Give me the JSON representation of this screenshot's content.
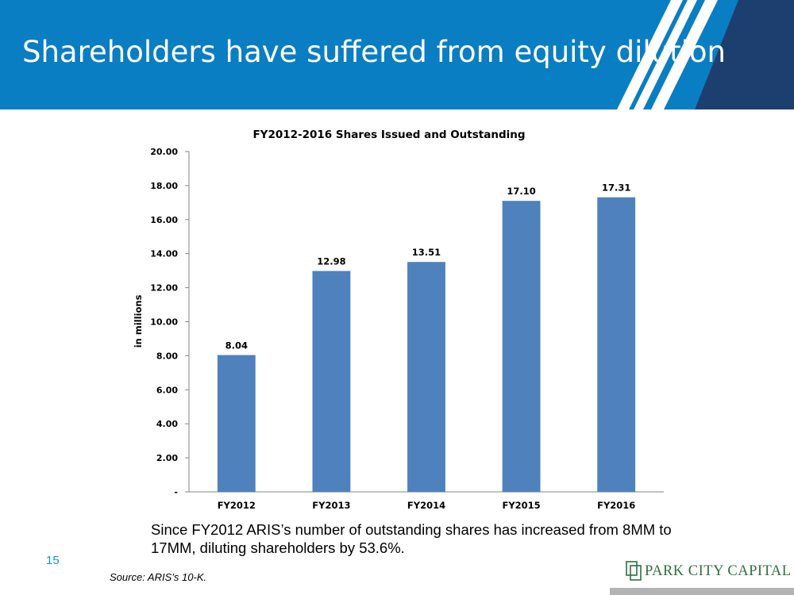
{
  "slide": {
    "title": "Shareholders have suffered from equity dilution",
    "page_number": "15",
    "caption": "Since FY2012 ARIS’s number of outstanding shares has increased from 8MM to 17MM, diluting shareholders by 53.6%.",
    "source": "Source: ARIS’s 10-K.",
    "logo_text": "PARK CITY CAPITAL"
  },
  "colors": {
    "header": "#0a7ec2",
    "bar": "#4f81bd",
    "accent_text": "#1b8fd6",
    "logo": "#2e6f3f"
  },
  "chart_data": {
    "type": "bar",
    "title": "FY2012-2016 Shares Issued and Outstanding",
    "xlabel": "",
    "ylabel": "in millions",
    "categories": [
      "FY2012",
      "FY2013",
      "FY2014",
      "FY2015",
      "FY2016"
    ],
    "values": [
      8.04,
      12.98,
      13.51,
      17.1,
      17.31
    ],
    "data_labels": [
      "8.04",
      "12.98",
      "13.51",
      "17.10",
      "17.31"
    ],
    "ylim": [
      0,
      20
    ],
    "yticks": [
      0,
      2,
      4,
      6,
      8,
      10,
      12,
      14,
      16,
      18,
      20
    ],
    "ytick_labels": [
      "-",
      "2.00",
      "4.00",
      "6.00",
      "8.00",
      "10.00",
      "12.00",
      "14.00",
      "16.00",
      "18.00",
      "20.00"
    ],
    "grid": false,
    "legend": "none"
  }
}
